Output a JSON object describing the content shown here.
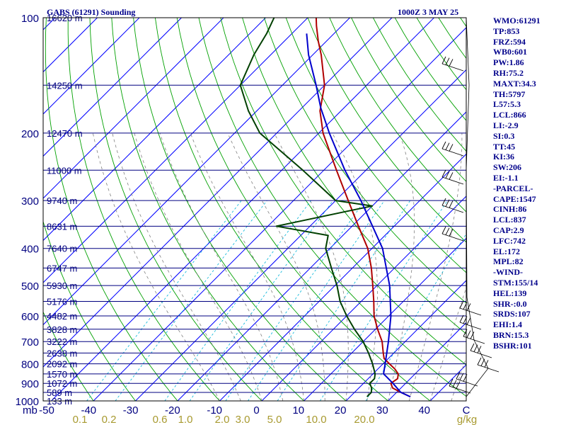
{
  "header": {
    "title": "GABS (61291) Sounding",
    "time": "1000Z  3 MAY 25"
  },
  "colors": {
    "isobar": "#000080",
    "isotherm": "#0000ff",
    "dry_adiabat": "#00a000",
    "moist_adiabat": "#808080",
    "mixing_ratio": "#00b4d8",
    "temperature": "#b00000",
    "dewpoint": "#004000",
    "parcel": "#0000cc",
    "text": "#00008b",
    "mixing_ratio_label": "#a89a30"
  },
  "side_panel": [
    "WMO:61291",
    "TP:853",
    "FRZ:594",
    "WB0:601",
    "PW:1.86",
    "RH:75.2",
    "MAXT:34.3",
    "TH:5797",
    "L57:5.3",
    "LCL:866",
    "LI:-2.9",
    "SI:0.3",
    "TT:45",
    "KI:36",
    "SW:206",
    "EI:-1.1",
    "-PARCEL-",
    "CAPE:1547",
    "CINH:86",
    "LCL:837",
    "CAP:2.9",
    "LFC:742",
    "EL:172",
    "MPL:82",
    "-WIND-",
    "STM:155/14",
    "HEL:139",
    "SHR-:0.0",
    "SRDS:107",
    "EHI:1.4",
    "BRN:15.3",
    "BSHR:101"
  ],
  "chart_data": {
    "type": "line",
    "title": "GABS (61291) Sounding",
    "xlabel": "",
    "ylabel": "mb",
    "x_range": [
      -50,
      50
    ],
    "y_range": [
      100,
      1000
    ],
    "y_scale": "log (pressure, inverted)",
    "grid": true,
    "pressure_ticks": [
      100,
      200,
      300,
      400,
      500,
      600,
      700,
      800,
      900,
      1000
    ],
    "isobar_levels": [
      {
        "p": 100,
        "height": "16620 m"
      },
      {
        "p": 150,
        "height": "14250 m"
      },
      {
        "p": 200,
        "height": "12470 m"
      },
      {
        "p": 250,
        "height": "11000 m"
      },
      {
        "p": 300,
        "height": "9740 m"
      },
      {
        "p": 350,
        "height": "8631 m"
      },
      {
        "p": 400,
        "height": "7640 m"
      },
      {
        "p": 450,
        "height": "6747 m"
      },
      {
        "p": 500,
        "height": "5930 m"
      },
      {
        "p": 550,
        "height": "5176 m"
      },
      {
        "p": 600,
        "height": "4482 m"
      },
      {
        "p": 650,
        "height": "3828 m"
      },
      {
        "p": 700,
        "height": "3222 m"
      },
      {
        "p": 750,
        "height": "2638 m"
      },
      {
        "p": 800,
        "height": "2092 m"
      },
      {
        "p": 850,
        "height": "1570 m"
      },
      {
        "p": 900,
        "height": "1072 m"
      },
      {
        "p": 950,
        "height": "589 m"
      },
      {
        "p": 1000,
        "height": "133 m"
      }
    ],
    "temperature_ticks": [
      "-50",
      "-40",
      "-30",
      "-20",
      "-10",
      "0",
      "10",
      "20",
      "30",
      "40",
      "C"
    ],
    "mixing_ratio_labels": [
      "0.1",
      "0.2",
      "0.6",
      "1.0",
      "2.0",
      "3.0",
      "5.0",
      "10.0",
      "20.0",
      "g/kg"
    ],
    "series": [
      {
        "name": "Temperature",
        "points": [
          [
            975,
            34.3
          ],
          [
            950,
            31
          ],
          [
            925,
            28
          ],
          [
            900,
            26.5
          ],
          [
            875,
            27
          ],
          [
            850,
            26
          ],
          [
            825,
            24
          ],
          [
            800,
            21.5
          ],
          [
            775,
            19
          ],
          [
            750,
            17.5
          ],
          [
            700,
            14.5
          ],
          [
            650,
            10.5
          ],
          [
            600,
            6.5
          ],
          [
            550,
            3
          ],
          [
            500,
            -1
          ],
          [
            450,
            -5.5
          ],
          [
            400,
            -11
          ],
          [
            350,
            -18.5
          ],
          [
            300,
            -27
          ],
          [
            250,
            -37
          ],
          [
            200,
            -49
          ],
          [
            175,
            -55
          ],
          [
            150,
            -60
          ],
          [
            125,
            -68
          ],
          [
            115,
            -72
          ],
          [
            105,
            -76
          ],
          [
            100,
            -78
          ]
        ]
      },
      {
        "name": "Dewpoint",
        "points": [
          [
            975,
            24
          ],
          [
            950,
            24
          ],
          [
            925,
            23
          ],
          [
            900,
            21.5
          ],
          [
            875,
            21.5
          ],
          [
            850,
            20.5
          ],
          [
            800,
            17.5
          ],
          [
            750,
            14
          ],
          [
            700,
            10
          ],
          [
            650,
            5
          ],
          [
            600,
            0
          ],
          [
            550,
            -5
          ],
          [
            500,
            -9.5
          ],
          [
            450,
            -15
          ],
          [
            400,
            -21
          ],
          [
            370,
            -23.5
          ],
          [
            350,
            -38
          ],
          [
            310,
            -20
          ],
          [
            300,
            -30
          ],
          [
            250,
            -45
          ],
          [
            200,
            -64
          ],
          [
            175,
            -72
          ],
          [
            150,
            -80
          ],
          [
            125,
            -84
          ],
          [
            110,
            -86
          ],
          [
            100,
            -88
          ]
        ]
      },
      {
        "name": "Parcel",
        "points": [
          [
            975,
            34.3
          ],
          [
            950,
            31
          ],
          [
            900,
            27
          ],
          [
            866,
            24
          ],
          [
            850,
            22.5
          ],
          [
            800,
            20.5
          ],
          [
            700,
            16
          ],
          [
            600,
            10.5
          ],
          [
            500,
            3
          ],
          [
            400,
            -7.5
          ],
          [
            300,
            -24
          ],
          [
            250,
            -35
          ],
          [
            200,
            -47.5
          ],
          [
            172,
            -55.5
          ],
          [
            150,
            -62
          ],
          [
            125,
            -71
          ],
          [
            110,
            -76.5
          ]
        ]
      }
    ]
  }
}
